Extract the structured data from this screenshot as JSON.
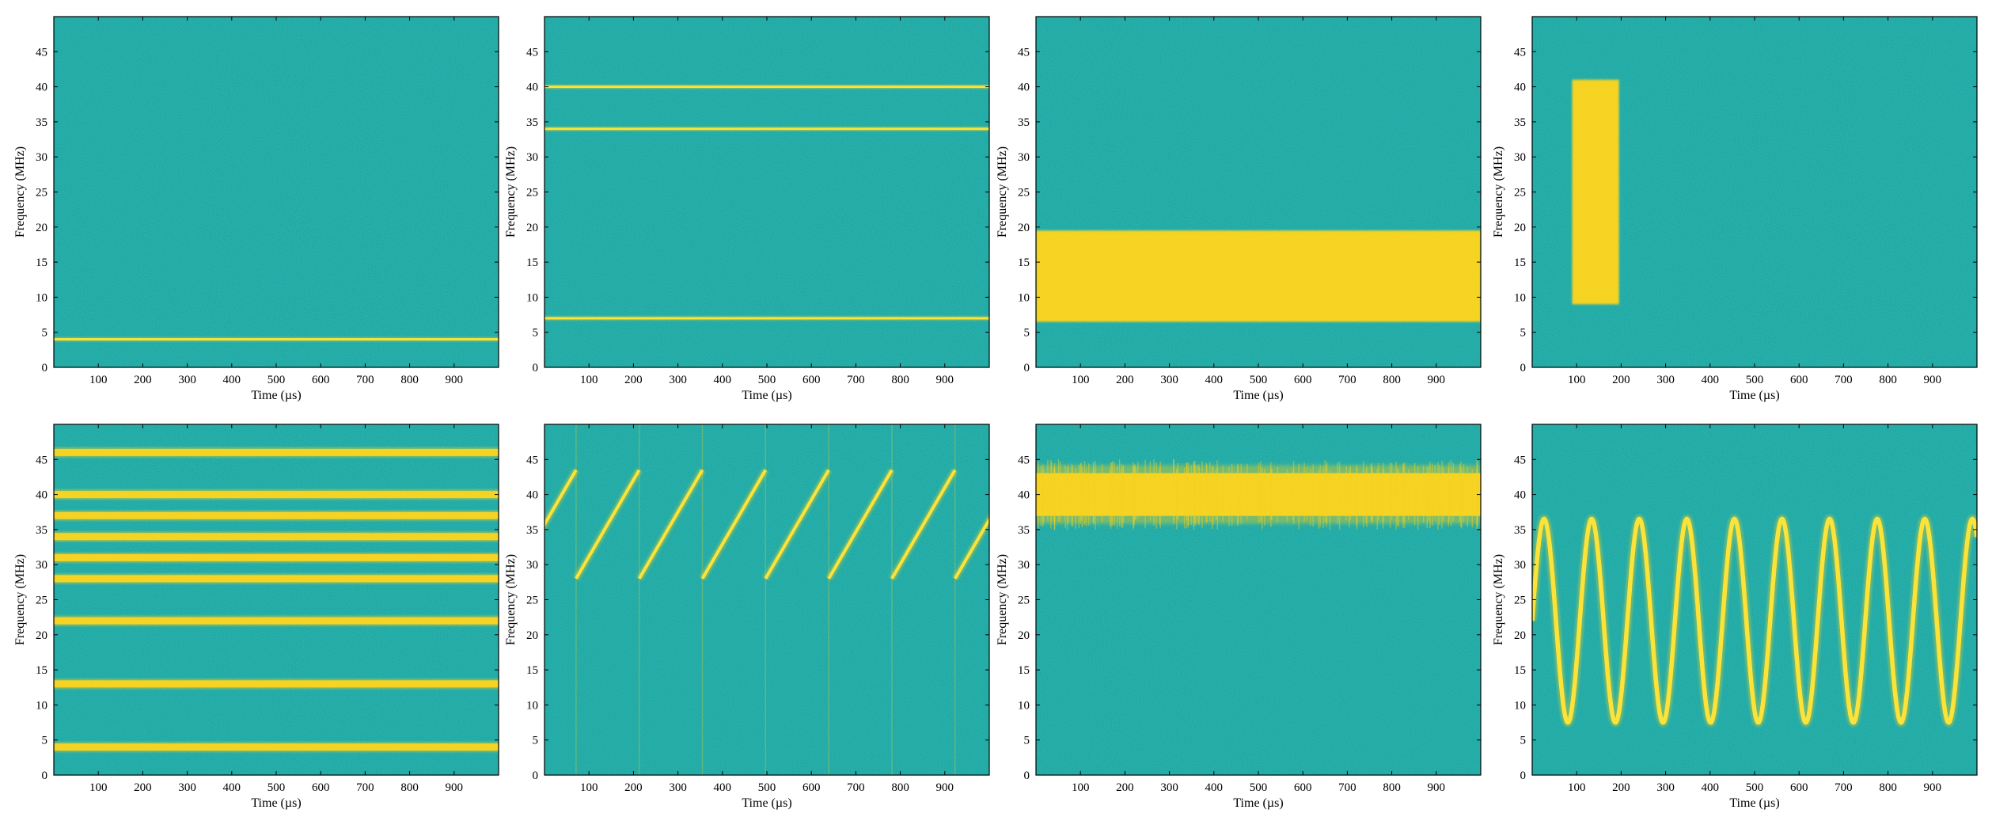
{
  "figure": {
    "background": "#ffffff",
    "colors": {
      "noise": "#1fa5a0",
      "noise_dark": "#1596a6",
      "noise_light": "#3fb88c",
      "signal": "#f5d21e",
      "signal_core": "#fbe33a",
      "axis": "#000000"
    }
  },
  "chart_data": [
    {
      "type": "heatmap",
      "panel": "row1-col1",
      "xlabel": "Time (µs)",
      "ylabel": "Frequency (MHz)",
      "xlim": [
        0,
        1000
      ],
      "ylim": [
        0,
        50
      ],
      "xticks": [
        100,
        200,
        300,
        400,
        500,
        600,
        700,
        800,
        900
      ],
      "yticks": [
        0,
        5,
        10,
        15,
        20,
        25,
        30,
        35,
        40,
        45
      ],
      "signals": [
        {
          "kind": "tone",
          "freq": 4,
          "width": 0.35
        }
      ]
    },
    {
      "type": "heatmap",
      "panel": "row1-col2",
      "xlabel": "Time (µs)",
      "ylabel": "Frequency (MHz)",
      "xlim": [
        0,
        1000
      ],
      "ylim": [
        0,
        50
      ],
      "xticks": [
        100,
        200,
        300,
        400,
        500,
        600,
        700,
        800,
        900
      ],
      "yticks": [
        0,
        5,
        10,
        15,
        20,
        25,
        30,
        35,
        40,
        45
      ],
      "signals": [
        {
          "kind": "tone",
          "freq": 40,
          "width": 0.35
        },
        {
          "kind": "tone",
          "freq": 34,
          "width": 0.35
        },
        {
          "kind": "tone",
          "freq": 7,
          "width": 0.35
        }
      ]
    },
    {
      "type": "heatmap",
      "panel": "row1-col3",
      "xlabel": "Time (µs)",
      "ylabel": "Frequency (MHz)",
      "xlim": [
        0,
        1000
      ],
      "ylim": [
        0,
        50
      ],
      "xticks": [
        100,
        200,
        300,
        400,
        500,
        600,
        700,
        800,
        900
      ],
      "yticks": [
        0,
        5,
        10,
        15,
        20,
        25,
        30,
        35,
        40,
        45
      ],
      "signals": [
        {
          "kind": "band",
          "f_low": 6.5,
          "f_high": 19.5,
          "t_start": 0,
          "t_end": 1000
        }
      ]
    },
    {
      "type": "heatmap",
      "panel": "row1-col4",
      "xlabel": "Time (µs)",
      "ylabel": "Frequency (MHz)",
      "xlim": [
        0,
        1000
      ],
      "ylim": [
        0,
        50
      ],
      "xticks": [
        100,
        200,
        300,
        400,
        500,
        600,
        700,
        800,
        900
      ],
      "yticks": [
        0,
        5,
        10,
        15,
        20,
        25,
        30,
        35,
        40,
        45
      ],
      "signals": [
        {
          "kind": "band",
          "f_low": 9,
          "f_high": 41,
          "t_start": 90,
          "t_end": 195
        }
      ]
    },
    {
      "type": "heatmap",
      "panel": "row2-col1",
      "xlabel": "Time (µs)",
      "ylabel": "Frequency (MHz)",
      "xlim": [
        0,
        1000
      ],
      "ylim": [
        0,
        50
      ],
      "xticks": [
        100,
        200,
        300,
        400,
        500,
        600,
        700,
        800,
        900
      ],
      "yticks": [
        0,
        5,
        10,
        15,
        20,
        25,
        30,
        35,
        40,
        45
      ],
      "signals": [
        {
          "kind": "tone",
          "freq": 46,
          "width": 1.0
        },
        {
          "kind": "tone",
          "freq": 40,
          "width": 1.0
        },
        {
          "kind": "tone",
          "freq": 37,
          "width": 1.0
        },
        {
          "kind": "tone",
          "freq": 34,
          "width": 1.0
        },
        {
          "kind": "tone",
          "freq": 31,
          "width": 1.0
        },
        {
          "kind": "tone",
          "freq": 28,
          "width": 1.0
        },
        {
          "kind": "tone",
          "freq": 22,
          "width": 1.0
        },
        {
          "kind": "tone",
          "freq": 13,
          "width": 1.0
        },
        {
          "kind": "tone",
          "freq": 4,
          "width": 1.0
        }
      ]
    },
    {
      "type": "heatmap",
      "panel": "row2-col2",
      "xlabel": "Time (µs)",
      "ylabel": "Frequency (MHz)",
      "xlim": [
        0,
        1000
      ],
      "ylim": [
        0,
        50
      ],
      "xticks": [
        100,
        200,
        300,
        400,
        500,
        600,
        700,
        800,
        900
      ],
      "yticks": [
        0,
        5,
        10,
        15,
        20,
        25,
        30,
        35,
        40,
        45
      ],
      "signals": [
        {
          "kind": "sawtooth_chirp",
          "f_start": 28,
          "f_end": 43.5,
          "period": 142,
          "phase": 0.05
        }
      ]
    },
    {
      "type": "heatmap",
      "panel": "row2-col3",
      "xlabel": "Time (µs)",
      "ylabel": "Frequency (MHz)",
      "xlim": [
        0,
        1000
      ],
      "ylim": [
        0,
        50
      ],
      "xticks": [
        100,
        200,
        300,
        400,
        500,
        600,
        700,
        800,
        900
      ],
      "yticks": [
        0,
        5,
        10,
        15,
        20,
        25,
        30,
        35,
        40,
        45
      ],
      "signals": [
        {
          "kind": "noisy_band",
          "center": 40,
          "half_width": 3.5
        }
      ]
    },
    {
      "type": "heatmap",
      "panel": "row2-col4",
      "xlabel": "Time (µs)",
      "ylabel": "Frequency (MHz)",
      "xlim": [
        0,
        1000
      ],
      "ylim": [
        0,
        50
      ],
      "xticks": [
        100,
        200,
        300,
        400,
        500,
        600,
        700,
        800,
        900
      ],
      "yticks": [
        0,
        5,
        10,
        15,
        20,
        25,
        30,
        35,
        40,
        45
      ],
      "signals": [
        {
          "kind": "sine_fm",
          "center": 22,
          "amplitude": 14.5,
          "period": 107,
          "phase_deg": 0
        }
      ]
    }
  ]
}
